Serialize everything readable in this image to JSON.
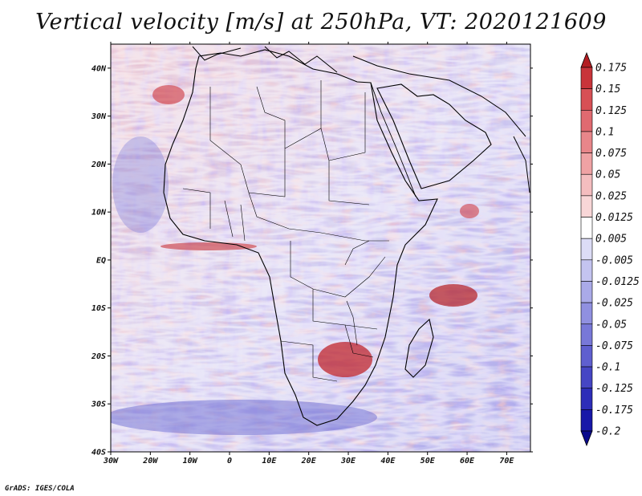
{
  "title": "Vertical velocity [m/s] at 250hPa, VT: 2020121609",
  "credit": "GrADS: IGES/COLA",
  "map": {
    "lon_range": [
      -30,
      76
    ],
    "lat_range": [
      -40,
      45
    ],
    "lon_ticks": [
      "30W",
      "20W",
      "10W",
      "0",
      "10E",
      "20E",
      "30E",
      "40E",
      "50E",
      "60E",
      "70E"
    ],
    "lat_ticks": [
      "40N",
      "30N",
      "20N",
      "10N",
      "EQ",
      "10S",
      "20S",
      "30S",
      "40S"
    ]
  },
  "colorbar": {
    "levels": [
      "0.175",
      "0.15",
      "0.125",
      "0.1",
      "0.075",
      "0.05",
      "0.025",
      "0.0125",
      "0.005",
      "-0.005",
      "-0.0125",
      "-0.025",
      "-0.05",
      "-0.075",
      "-0.1",
      "-0.125",
      "-0.175",
      "-0.2"
    ],
    "colors": [
      "#b31d22",
      "#c8343a",
      "#d75055",
      "#e06a70",
      "#e8868a",
      "#efa2a4",
      "#f4bdbf",
      "#f8d6d7",
      "#ffffff",
      "#dcdcf6",
      "#c4c4f0",
      "#aaaae8",
      "#9090e0",
      "#7878d8",
      "#5f5fcf",
      "#4646c4",
      "#2d2db8",
      "#1818a8",
      "#0a0a8c"
    ]
  },
  "features": {
    "strong_ascent_regions": [
      "southern Africa 20S 30E",
      "Indian Ocean 12S 58E",
      "Gulf of Guinea 3N",
      "North Atlantic 33N 22W"
    ]
  }
}
